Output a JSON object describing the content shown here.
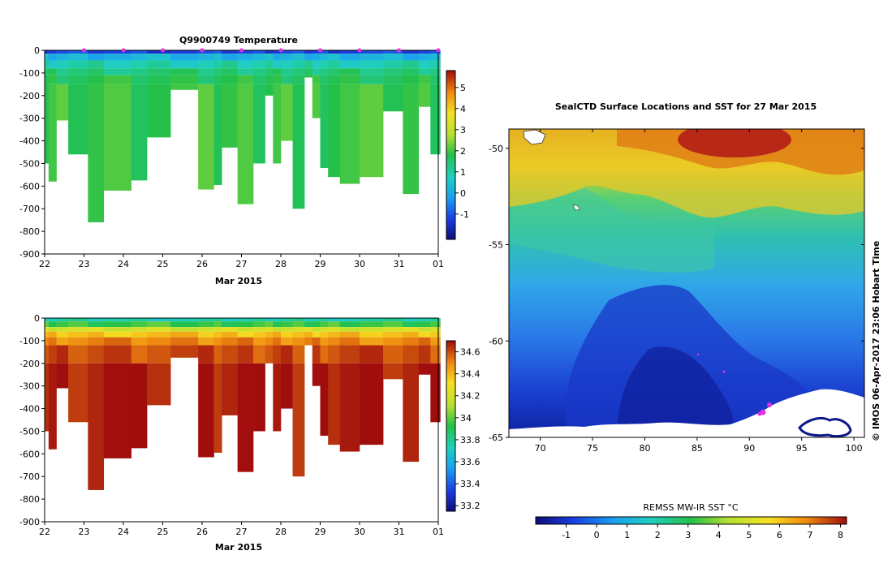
{
  "chart_data": [
    {
      "type": "heatmap",
      "title": "Q9900749  Temperature",
      "xlabel": "Mar 2015",
      "ylabel": "",
      "xticks": [
        "22",
        "23",
        "24",
        "25",
        "26",
        "27",
        "28",
        "29",
        "30",
        "31",
        "01"
      ],
      "yticks": [
        "0",
        "-100",
        "-200",
        "-300",
        "-400",
        "-500",
        "-600",
        "-700",
        "-800",
        "-900"
      ],
      "ylim": [
        -900,
        0
      ],
      "xlim": [
        22,
        32
      ],
      "colorbar": {
        "min": -2.2,
        "max": 5.8,
        "ticks": [
          "-1",
          "0",
          "1",
          "2",
          "3",
          "4",
          "5"
        ],
        "tick_values": [
          -1,
          0,
          1,
          2,
          3,
          4,
          5
        ]
      },
      "profile_markers_x": [
        23,
        24,
        25,
        26,
        27,
        28,
        29,
        30,
        31,
        32
      ],
      "layers": [
        {
          "depth_max": -15,
          "value": -1.2
        },
        {
          "depth_max": -45,
          "value": 0.2
        },
        {
          "depth_max": -80,
          "value": 0.9
        },
        {
          "depth_max": -110,
          "value": 1.4
        },
        {
          "depth_max": -150,
          "value": 1.7
        },
        {
          "depth_max": -900,
          "value": 1.9
        }
      ],
      "profiles": [
        {
          "x_start": 22.0,
          "x_end": 22.1,
          "max_depth": -500
        },
        {
          "x_start": 22.1,
          "x_end": 22.3,
          "max_depth": -580
        },
        {
          "x_start": 22.3,
          "x_end": 22.6,
          "max_depth": -310
        },
        {
          "x_start": 22.6,
          "x_end": 23.1,
          "max_depth": -460
        },
        {
          "x_start": 23.1,
          "x_end": 23.5,
          "max_depth": -760
        },
        {
          "x_start": 23.5,
          "x_end": 24.2,
          "max_depth": -620
        },
        {
          "x_start": 24.2,
          "x_end": 24.6,
          "max_depth": -575
        },
        {
          "x_start": 24.6,
          "x_end": 25.2,
          "max_depth": -385
        },
        {
          "x_start": 25.2,
          "x_end": 25.9,
          "max_depth": -175
        },
        {
          "x_start": 25.9,
          "x_end": 26.3,
          "max_depth": -615
        },
        {
          "x_start": 26.3,
          "x_end": 26.5,
          "max_depth": -595
        },
        {
          "x_start": 26.5,
          "x_end": 26.9,
          "max_depth": -430
        },
        {
          "x_start": 26.9,
          "x_end": 27.3,
          "max_depth": -680
        },
        {
          "x_start": 27.3,
          "x_end": 27.6,
          "max_depth": -500
        },
        {
          "x_start": 27.6,
          "x_end": 27.8,
          "max_depth": -200
        },
        {
          "x_start": 27.8,
          "x_end": 28.0,
          "max_depth": -500
        },
        {
          "x_start": 28.0,
          "x_end": 28.3,
          "max_depth": -400
        },
        {
          "x_start": 28.3,
          "x_end": 28.6,
          "max_depth": -700
        },
        {
          "x_start": 28.6,
          "x_end": 28.8,
          "max_depth": -120
        },
        {
          "x_start": 28.8,
          "x_end": 29.0,
          "max_depth": -300
        },
        {
          "x_start": 29.0,
          "x_end": 29.2,
          "max_depth": -520
        },
        {
          "x_start": 29.2,
          "x_end": 29.5,
          "max_depth": -560
        },
        {
          "x_start": 29.5,
          "x_end": 30.0,
          "max_depth": -590
        },
        {
          "x_start": 30.0,
          "x_end": 30.6,
          "max_depth": -560
        },
        {
          "x_start": 30.6,
          "x_end": 31.1,
          "max_depth": -270
        },
        {
          "x_start": 31.1,
          "x_end": 31.5,
          "max_depth": -635
        },
        {
          "x_start": 31.5,
          "x_end": 31.8,
          "max_depth": -250
        },
        {
          "x_start": 31.8,
          "x_end": 32.05,
          "max_depth": -460
        }
      ]
    },
    {
      "type": "heatmap",
      "title": "",
      "xlabel": "Mar 2015",
      "ylabel": "",
      "xticks": [
        "22",
        "23",
        "24",
        "25",
        "26",
        "27",
        "28",
        "29",
        "30",
        "31",
        "01"
      ],
      "yticks": [
        "0",
        "-100",
        "-200",
        "-300",
        "-400",
        "-500",
        "-600",
        "-700",
        "-800",
        "-900"
      ],
      "ylim": [
        -900,
        0
      ],
      "xlim": [
        22,
        32
      ],
      "colorbar": {
        "min": 33.15,
        "max": 34.7,
        "ticks": [
          "33.2",
          "33.4",
          "33.6",
          "33.8",
          "34",
          "34.2",
          "34.4",
          "34.6"
        ],
        "tick_values": [
          33.2,
          33.4,
          33.6,
          33.8,
          34.0,
          34.2,
          34.4,
          34.6
        ]
      },
      "layers": [
        {
          "depth_max": -15,
          "value": 33.75
        },
        {
          "depth_max": -40,
          "value": 33.95
        },
        {
          "depth_max": -60,
          "value": 34.2
        },
        {
          "depth_max": -85,
          "value": 34.38
        },
        {
          "depth_max": -120,
          "value": 34.5
        },
        {
          "depth_max": -200,
          "value": 34.6
        },
        {
          "depth_max": -900,
          "value": 34.68
        }
      ]
    },
    {
      "type": "heatmap",
      "title": "SealCTD Surface Locations and SST for 27 Mar 2015",
      "xlabel": "",
      "ylabel": "",
      "xticks": [
        "70",
        "75",
        "80",
        "85",
        "90",
        "95",
        "100"
      ],
      "yticks": [
        "-50",
        "-55",
        "-60",
        "-65"
      ],
      "xlim": [
        67,
        101
      ],
      "ylim": [
        -65,
        -49
      ],
      "colorbar": {
        "label": "REMSS MW-IR SST °C",
        "min": -2,
        "max": 8.2,
        "ticks": [
          "-1",
          "0",
          "1",
          "2",
          "3",
          "4",
          "5",
          "6",
          "7",
          "8"
        ],
        "tick_values": [
          -1,
          0,
          1,
          2,
          3,
          4,
          5,
          6,
          7,
          8
        ]
      },
      "credit": "© IMOS 06-Apr-2017 23:06 Hobart Time"
    }
  ]
}
